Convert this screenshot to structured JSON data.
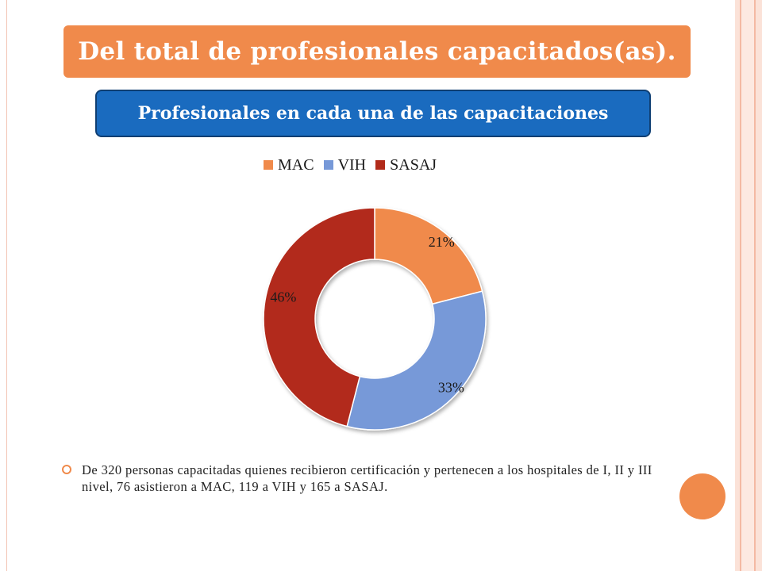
{
  "slide": {
    "title": "Del total de profesionales capacitados(as).",
    "body_text": "De 320 personas capacitadas quienes recibieron certificación y pertenecen a los hospitales de I, II y III nivel, 76 asistieron a MAC, 119 a VIH y 165 a SASAJ."
  },
  "colors": {
    "accent_orange": "#f08a4b",
    "box_blue": "#1a6bbf",
    "mac": "#f08a4b",
    "vih": "#7799d8",
    "sasaj": "#b22b1a"
  },
  "chart_data": {
    "type": "pie",
    "subtype": "donut",
    "title": "Profesionales en cada una de las capacitaciones",
    "legend_position": "top",
    "categories": [
      "MAC",
      "VIH",
      "SASAJ"
    ],
    "values": [
      21,
      33,
      46
    ],
    "data_labels": [
      "21%",
      "33%",
      "46%"
    ],
    "colors": [
      "#f08a4b",
      "#7799d8",
      "#b22b1a"
    ]
  }
}
